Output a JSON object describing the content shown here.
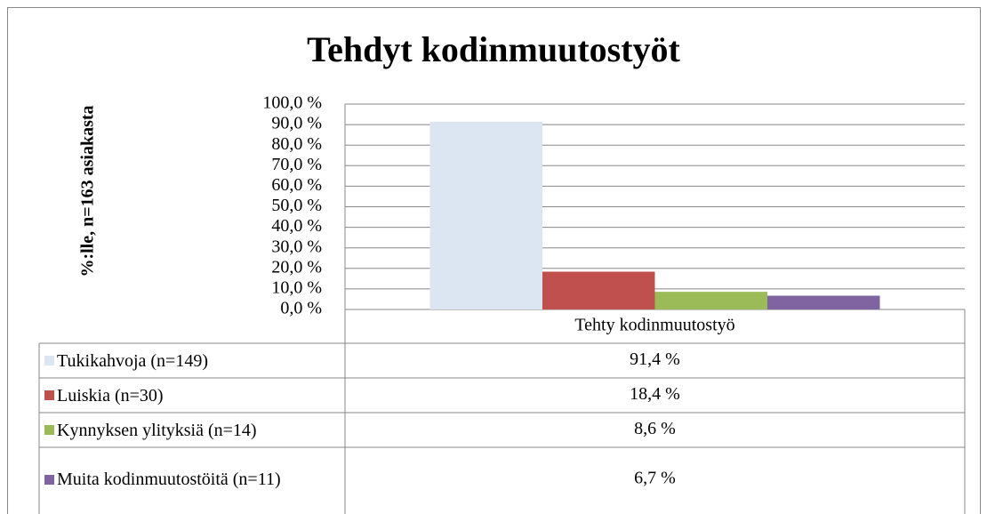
{
  "chart_data": {
    "type": "bar",
    "title": "Tehdyt kodinmuutostyöt",
    "y_label": "%:lle, n=163 asiakasta",
    "categories": [
      "Tehty kodinmuutostyö"
    ],
    "series": [
      {
        "name": "Tukikahvoja (n=149)",
        "color": "#dce6f2",
        "values": [
          91.4
        ],
        "value_labels": [
          "91,4 %"
        ]
      },
      {
        "name": "Luiskia (n=30)",
        "color": "#c0504d",
        "values": [
          18.4
        ],
        "value_labels": [
          "18,4 %"
        ]
      },
      {
        "name": "Kynnyksen ylityksiä (n=14)",
        "color": "#9bbb59",
        "values": [
          8.6
        ],
        "value_labels": [
          "8,6 %"
        ]
      },
      {
        "name": "Muita kodinmuutostöitä (n=11)",
        "color": "#8064a2",
        "values": [
          6.7
        ],
        "value_labels": [
          "6,7 %"
        ]
      }
    ],
    "ylim": [
      0,
      100
    ],
    "yticks": [
      {
        "value": 0,
        "label": "0,0 %"
      },
      {
        "value": 10,
        "label": "10,0 %"
      },
      {
        "value": 20,
        "label": "20,0 %"
      },
      {
        "value": 30,
        "label": "30,0 %"
      },
      {
        "value": 40,
        "label": "40,0 %"
      },
      {
        "value": 50,
        "label": "50,0 %"
      },
      {
        "value": 60,
        "label": "60,0 %"
      },
      {
        "value": 70,
        "label": "70,0 %"
      },
      {
        "value": 80,
        "label": "80,0 %"
      },
      {
        "value": 90,
        "label": "90,0 %"
      },
      {
        "value": 100,
        "label": "100,0 %"
      }
    ],
    "grid": true
  }
}
